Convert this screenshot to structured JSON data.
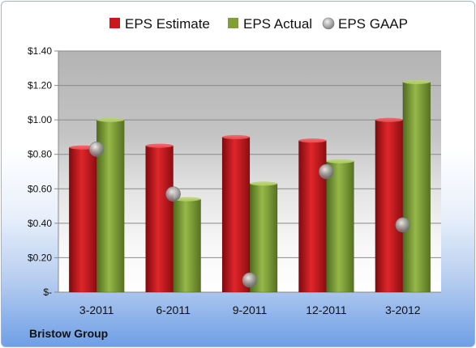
{
  "company": "Bristow Group",
  "chart_data": {
    "type": "bar",
    "categories": [
      "3-2011",
      "6-2011",
      "9-2011",
      "12-2011",
      "3-2012"
    ],
    "series": [
      {
        "name": "EPS Estimate",
        "values": [
          0.84,
          0.85,
          0.9,
          0.88,
          1.0
        ],
        "color": "#c9171c",
        "mark": "bar"
      },
      {
        "name": "EPS Actual",
        "values": [
          1.0,
          0.54,
          0.63,
          0.76,
          1.22
        ],
        "color": "#7fa035",
        "mark": "bar"
      },
      {
        "name": "EPS GAAP",
        "values": [
          0.83,
          0.57,
          0.07,
          0.7,
          0.39
        ],
        "color": "#a8a8a8",
        "mark": "circle"
      }
    ],
    "ylim": [
      0,
      1.4
    ],
    "ytick_values": [
      0,
      0.2,
      0.4,
      0.6,
      0.8,
      1.0,
      1.2,
      1.4
    ],
    "ytick_labels": [
      "$-",
      "$0.20",
      "$0.40",
      "$0.60",
      "$0.80",
      "$1.00",
      "$1.20",
      "$1.40"
    ],
    "grid": true,
    "legend_position": "top"
  }
}
